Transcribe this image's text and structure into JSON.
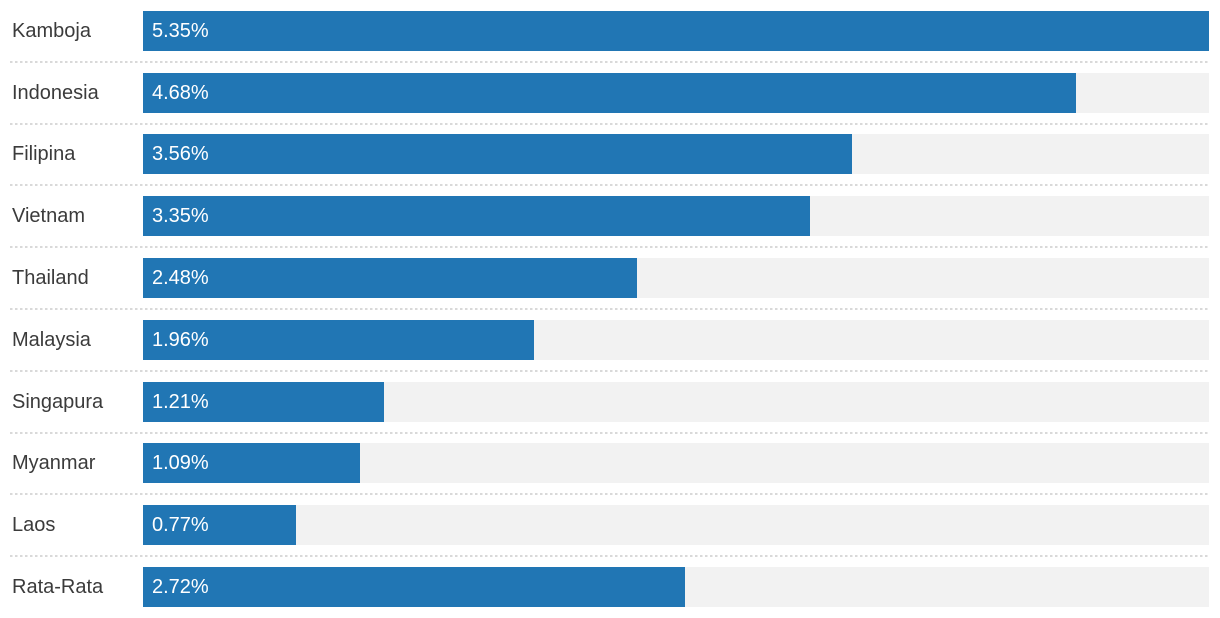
{
  "chart_data": {
    "type": "bar",
    "orientation": "horizontal",
    "title": "",
    "xlabel": "",
    "ylabel": "",
    "categories": [
      "Kamboja",
      "Indonesia",
      "Filipina",
      "Vietnam",
      "Thailand",
      "Malaysia",
      "Singapura",
      "Myanmar",
      "Laos",
      "Rata-Rata"
    ],
    "values": [
      5.35,
      4.68,
      3.56,
      3.35,
      2.48,
      1.96,
      1.21,
      1.09,
      0.77,
      2.72
    ],
    "value_labels": [
      "5.35%",
      "4.68%",
      "3.56%",
      "3.35%",
      "2.48%",
      "1.96%",
      "1.21%",
      "1.09%",
      "0.77%",
      "2.72%"
    ],
    "xlim": [
      0,
      5.35
    ],
    "max_value": 5.35,
    "grid": false,
    "legend": false,
    "value_label_position": "inside-start"
  },
  "colors": {
    "bar": "#2176b4",
    "track": "#f2f2f2",
    "separator": "#d9d9d9",
    "label_text": "#3b3b3b",
    "value_text": "#ffffff",
    "background": "#ffffff"
  },
  "rows": [
    {
      "label": "Kamboja",
      "value": 5.35,
      "value_label": "5.35%"
    },
    {
      "label": "Indonesia",
      "value": 4.68,
      "value_label": "4.68%"
    },
    {
      "label": "Filipina",
      "value": 3.56,
      "value_label": "3.56%"
    },
    {
      "label": "Vietnam",
      "value": 3.35,
      "value_label": "3.35%"
    },
    {
      "label": "Thailand",
      "value": 2.48,
      "value_label": "2.48%"
    },
    {
      "label": "Malaysia",
      "value": 1.96,
      "value_label": "1.96%"
    },
    {
      "label": "Singapura",
      "value": 1.21,
      "value_label": "1.21%"
    },
    {
      "label": "Myanmar",
      "value": 1.09,
      "value_label": "1.09%"
    },
    {
      "label": "Laos",
      "value": 0.77,
      "value_label": "0.77%"
    },
    {
      "label": "Rata-Rata",
      "value": 2.72,
      "value_label": "2.72%"
    }
  ]
}
